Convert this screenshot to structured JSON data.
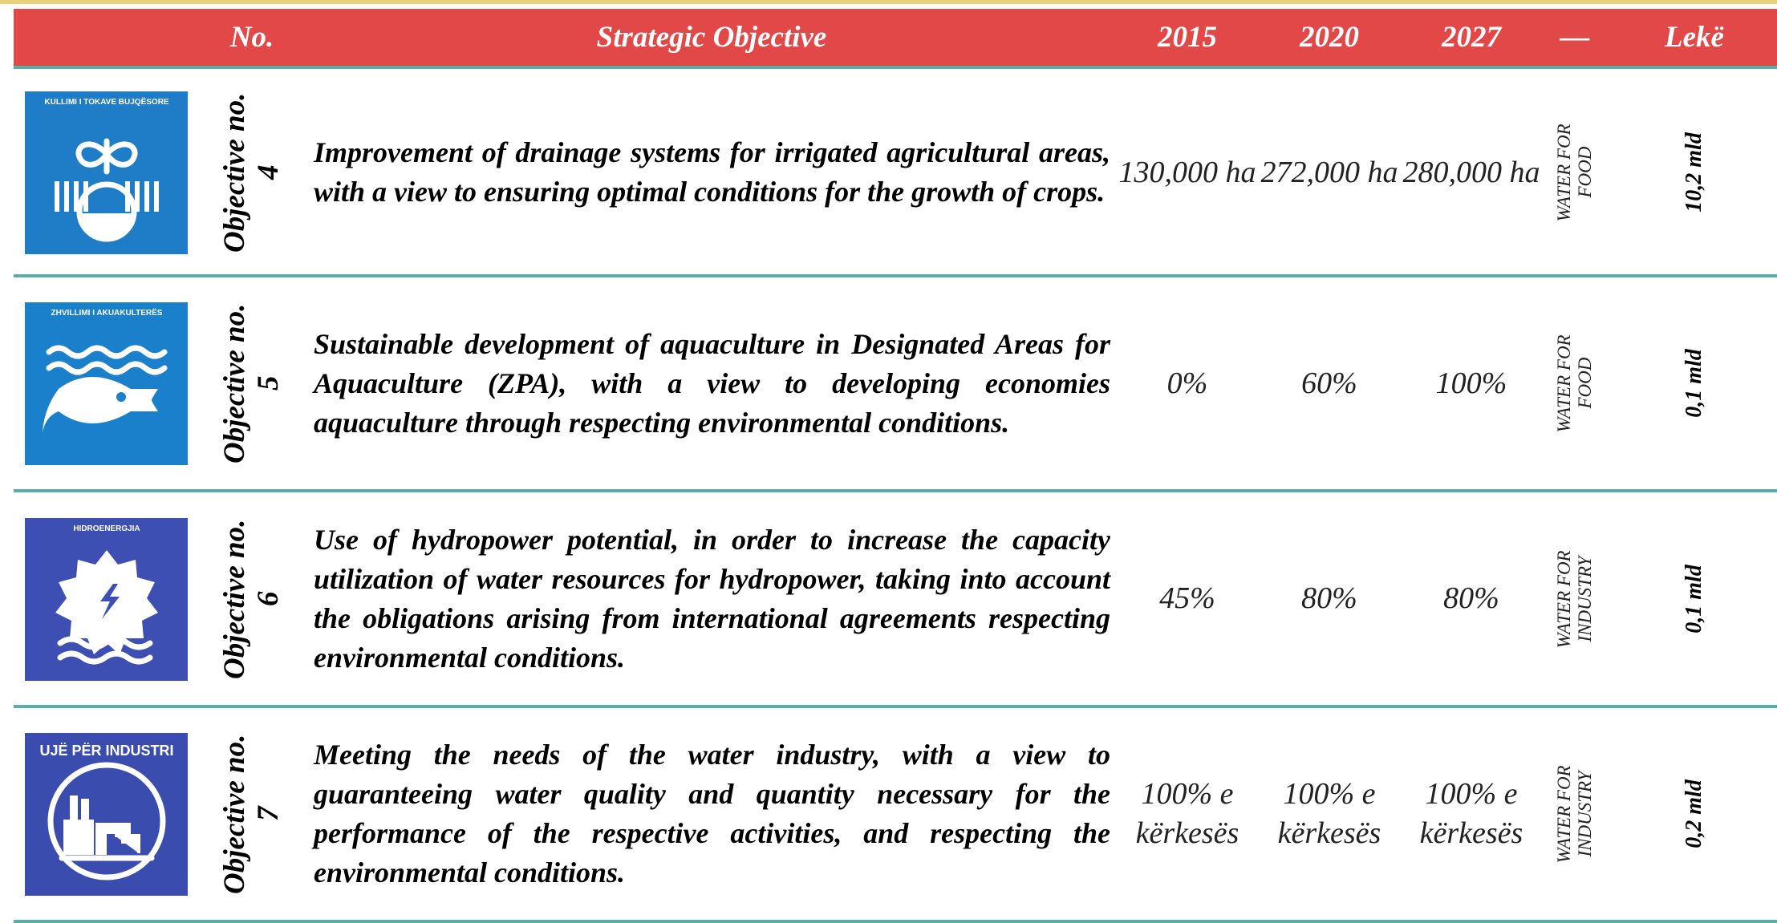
{
  "header": {
    "columns": [
      "No.",
      "Strategic Objective",
      "2015",
      "2020",
      "2027",
      "—",
      "Lekë"
    ]
  },
  "rows": [
    {
      "icon_label": "KULLIMI I TOKAVE BUJQËSORE",
      "objective": "Objective no. 4",
      "text": "Improvement of drainage systems for irrigated agricultural areas, with a view to ensuring optimal conditions for the growth of crops.",
      "values": [
        "130,000 ha",
        "272,000 ha",
        "280,000 ha"
      ],
      "category": "WATER FOR FOOD",
      "amount": "10,2 mld"
    },
    {
      "icon_label": "ZHVILLIMI I AKUAKULTERËS",
      "objective": "Objective no. 5",
      "text": "Sustainable development of aquaculture in Designated Areas for Aquaculture (ZPA), with a view to developing economies aquaculture through respecting environmental conditions.",
      "values": [
        "0%",
        "60%",
        "100%"
      ],
      "category": "WATER FOR FOOD",
      "amount": "0,1 mld"
    },
    {
      "icon_label": "HIDROENERGJIA",
      "objective": "Objective no. 6",
      "text": "Use of hydropower potential, in order to increase the capacity utilization of water resources for hydropower, taking into account the obligations arising from international agreements respecting environmental conditions.",
      "values": [
        "45%",
        "80%",
        "80%"
      ],
      "category": "WATER FOR INDUSTRY",
      "amount": "0,1 mld"
    },
    {
      "icon_label": "UJË PËR INDUSTRI",
      "objective": "Objective no. 7",
      "text": "Meeting the needs of the water industry, with a view to guaranteeing water quality and quantity necessary for the performance of the respective activities, and respecting the environmental conditions.",
      "values": [
        "100% e kërkesës",
        "100% e kërkesës",
        "100% e kërkesës"
      ],
      "category": "WATER FOR INDUSTRY",
      "amount": "0,2 mld"
    }
  ]
}
